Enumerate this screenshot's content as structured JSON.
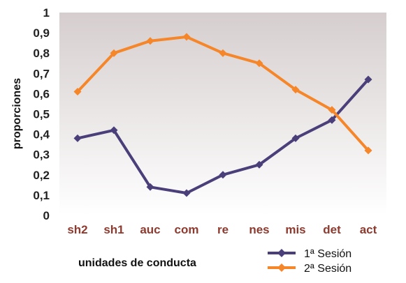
{
  "chart_data": {
    "type": "line",
    "categories": [
      "sh2",
      "sh1",
      "auc",
      "com",
      "re",
      "nes",
      "mis",
      "det",
      "act"
    ],
    "series": [
      {
        "name": "1ª Sesión",
        "color": "#4b3f7a",
        "values": [
          0.38,
          0.42,
          0.14,
          0.11,
          0.2,
          0.25,
          0.38,
          0.47,
          0.67
        ]
      },
      {
        "name": "2ª Sesión",
        "color": "#f5862a",
        "values": [
          0.61,
          0.8,
          0.86,
          0.88,
          0.8,
          0.75,
          0.62,
          0.52,
          0.32
        ]
      }
    ],
    "xlabel": "unidades de conducta",
    "ylabel": "proporciones",
    "ylim": [
      0,
      1
    ],
    "yticks": [
      "0",
      "0,1",
      "0,2",
      "0,3",
      "0,4",
      "0,5",
      "0,6",
      "0,7",
      "0,8",
      "0,9",
      "1"
    ],
    "grid": false,
    "legend_position": "bottom-right",
    "background_gradient": [
      "#d6cece",
      "#ffffff"
    ],
    "tick_label_color": "#8e3a2e"
  }
}
